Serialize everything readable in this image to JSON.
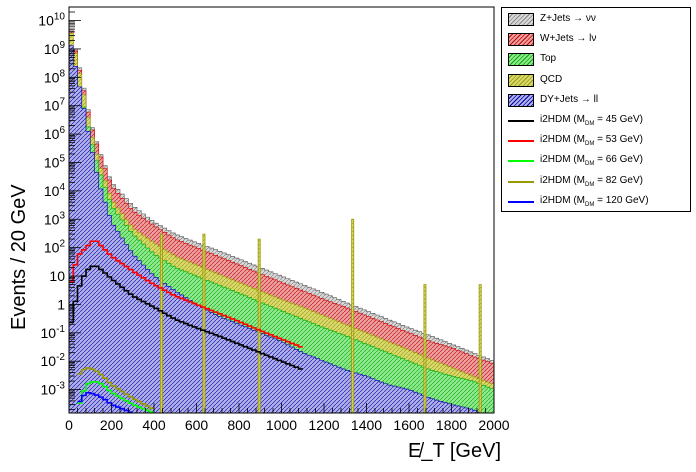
{
  "chart_data": {
    "type": "bar",
    "stacked": true,
    "log_y": true,
    "xlabel": "E̸_T [GeV]",
    "ylabel": "Events / 20 GeV",
    "xlim": [
      0,
      2000
    ],
    "ylim": [
      0.00015,
      30000000000
    ],
    "x_ticks": [
      "0",
      "200",
      "400",
      "600",
      "800",
      "1000",
      "1200",
      "1400",
      "1600",
      "1800",
      "2000"
    ],
    "y_ticks": [
      {
        "value": 0.001,
        "base": "10",
        "exp": "-3"
      },
      {
        "value": 0.01,
        "base": "10",
        "exp": "-2"
      },
      {
        "value": 0.1,
        "base": "10",
        "exp": "-1"
      },
      {
        "value": 1,
        "base": "1",
        "exp": ""
      },
      {
        "value": 10,
        "base": "10",
        "exp": ""
      },
      {
        "value": 100,
        "base": "10",
        "exp": "2"
      },
      {
        "value": 1000,
        "base": "10",
        "exp": "3"
      },
      {
        "value": 10000,
        "base": "10",
        "exp": "4"
      },
      {
        "value": 100000,
        "base": "10",
        "exp": "5"
      },
      {
        "value": 1000000,
        "base": "10",
        "exp": "6"
      },
      {
        "value": 10000000,
        "base": "10",
        "exp": "7"
      },
      {
        "value": 100000000,
        "base": "10",
        "exp": "8"
      },
      {
        "value": 1000000000,
        "base": "10",
        "exp": "9"
      },
      {
        "value": 10000000000,
        "base": "10",
        "exp": "10"
      }
    ],
    "bin_width": 20,
    "legend_position": "top-right, outside plot",
    "stack_totals": {
      "note_for_readers_only": "",
      "Z+Jets": [
        [
          0,
          10000000000
        ],
        [
          60,
          100000000
        ],
        [
          100,
          3000000
        ],
        [
          140,
          300000
        ],
        [
          200,
          20000
        ],
        [
          300,
          3000
        ],
        [
          400,
          800
        ],
        [
          500,
          300
        ],
        [
          600,
          150
        ],
        [
          700,
          80
        ],
        [
          800,
          40
        ],
        [
          900,
          20
        ],
        [
          1000,
          10
        ],
        [
          1100,
          5
        ],
        [
          1200,
          2.5
        ],
        [
          1300,
          1.2
        ],
        [
          1400,
          0.6
        ],
        [
          1500,
          0.3
        ],
        [
          1600,
          0.15
        ],
        [
          1700,
          0.08
        ],
        [
          1800,
          0.04
        ],
        [
          1900,
          0.02
        ],
        [
          2000,
          0.01
        ]
      ],
      "W+Jets": [
        [
          0,
          9000000000
        ],
        [
          60,
          80000000
        ],
        [
          100,
          2500000
        ],
        [
          140,
          250000
        ],
        [
          200,
          15000
        ],
        [
          300,
          2000
        ],
        [
          400,
          600
        ],
        [
          500,
          200
        ],
        [
          600,
          100
        ],
        [
          700,
          50
        ],
        [
          800,
          25
        ],
        [
          900,
          12
        ],
        [
          1000,
          6
        ],
        [
          1100,
          3
        ],
        [
          1200,
          1.5
        ],
        [
          1300,
          0.8
        ],
        [
          1400,
          0.4
        ],
        [
          1500,
          0.2
        ],
        [
          1600,
          0.1
        ],
        [
          1700,
          0.05
        ],
        [
          1800,
          0.03
        ],
        [
          1900,
          0.015
        ],
        [
          2000,
          0.008
        ]
      ],
      "Top": [
        [
          0,
          1000000000
        ],
        [
          60,
          20000000
        ],
        [
          100,
          800000
        ],
        [
          140,
          60000
        ],
        [
          200,
          3000
        ],
        [
          300,
          300
        ],
        [
          400,
          60
        ],
        [
          500,
          20
        ],
        [
          600,
          10
        ],
        [
          700,
          5
        ],
        [
          800,
          2.5
        ],
        [
          900,
          1.2
        ],
        [
          1000,
          0.6
        ],
        [
          1100,
          0.3
        ],
        [
          1200,
          0.15
        ],
        [
          1300,
          0.08
        ],
        [
          1400,
          0.04
        ],
        [
          1500,
          0.02
        ],
        [
          1600,
          0.01
        ],
        [
          1700,
          0.005
        ],
        [
          1800,
          0.003
        ],
        [
          1900,
          0.002
        ],
        [
          2000,
          0.001
        ]
      ],
      "QCD": [
        [
          0,
          8000000000
        ],
        [
          60,
          60000000
        ],
        [
          100,
          1500000
        ],
        [
          140,
          100000
        ],
        [
          200,
          5000
        ],
        [
          300,
          500
        ],
        [
          400,
          150
        ],
        [
          500,
          50
        ],
        [
          600,
          25
        ],
        [
          700,
          12
        ],
        [
          800,
          6
        ],
        [
          900,
          3
        ],
        [
          1000,
          1.5
        ],
        [
          1100,
          0.8
        ],
        [
          1200,
          0.4
        ],
        [
          1300,
          0.2
        ],
        [
          1400,
          0.1
        ],
        [
          1500,
          0.05
        ],
        [
          1600,
          0.025
        ],
        [
          1700,
          0.012
        ],
        [
          1800,
          0.006
        ],
        [
          1900,
          0.003
        ],
        [
          2000,
          0.0015
        ]
      ],
      "DY+Jets": [
        [
          0,
          3000000000
        ],
        [
          60,
          20000000
        ],
        [
          100,
          500000
        ],
        [
          140,
          20000
        ],
        [
          200,
          800
        ],
        [
          300,
          60
        ],
        [
          400,
          10
        ],
        [
          500,
          3
        ],
        [
          600,
          1
        ],
        [
          700,
          0.4
        ],
        [
          800,
          0.2
        ],
        [
          900,
          0.1
        ],
        [
          1000,
          0.05
        ],
        [
          1100,
          0.02
        ],
        [
          1200,
          0.01
        ],
        [
          1300,
          0.005
        ],
        [
          1400,
          0.003
        ],
        [
          1500,
          0.0015
        ],
        [
          1600,
          0.001
        ],
        [
          1700,
          0.0005
        ],
        [
          1800,
          0.0003
        ],
        [
          1900,
          0.0002
        ],
        [
          2000,
          0.0001
        ]
      ]
    },
    "qcd_spikes": [
      [
        500,
        300
      ],
      [
        700,
        300
      ],
      [
        960,
        200
      ],
      [
        1400,
        1000
      ],
      [
        1740,
        5
      ],
      [
        2000,
        5
      ]
    ],
    "signal_lines": [
      {
        "name": "i2HDM (M_DM = 45 GeV)",
        "color": "#000000",
        "points": [
          [
            0,
            0.1
          ],
          [
            40,
            3
          ],
          [
            80,
            15
          ],
          [
            120,
            25
          ],
          [
            160,
            15
          ],
          [
            200,
            8
          ],
          [
            300,
            2
          ],
          [
            400,
            0.8
          ],
          [
            500,
            0.3
          ],
          [
            600,
            0.15
          ],
          [
            700,
            0.08
          ],
          [
            800,
            0.04
          ],
          [
            900,
            0.02
          ],
          [
            1000,
            0.01
          ],
          [
            1100,
            0.005
          ]
        ]
      },
      {
        "name": "i2HDM (M_DM = 53 GeV)",
        "color": "#ff0000",
        "points": [
          [
            0,
            3
          ],
          [
            40,
            50
          ],
          [
            80,
            100
          ],
          [
            120,
            200
          ],
          [
            160,
            100
          ],
          [
            200,
            50
          ],
          [
            300,
            15
          ],
          [
            400,
            5
          ],
          [
            500,
            2
          ],
          [
            600,
            1
          ],
          [
            700,
            0.5
          ],
          [
            800,
            0.25
          ],
          [
            900,
            0.12
          ],
          [
            1000,
            0.06
          ],
          [
            1100,
            0.03
          ]
        ]
      },
      {
        "name": "i2HDM (M_DM = 66 GeV)",
        "color": "#00ff00",
        "points": [
          [
            40,
            0.0002
          ],
          [
            80,
            0.0015
          ],
          [
            120,
            0.002
          ],
          [
            160,
            0.0015
          ],
          [
            200,
            0.0008
          ],
          [
            300,
            0.0003
          ],
          [
            400,
            0.00015
          ]
        ]
      },
      {
        "name": "i2HDM (M_DM = 82 GeV)",
        "color": "#999900",
        "points": [
          [
            40,
            0.003
          ],
          [
            80,
            0.006
          ],
          [
            120,
            0.005
          ],
          [
            160,
            0.003
          ],
          [
            200,
            0.0015
          ],
          [
            300,
            0.0005
          ],
          [
            400,
            0.0002
          ]
        ]
      },
      {
        "name": "i2HDM (M_DM = 120 GeV)",
        "color": "#0000ff",
        "points": [
          [
            40,
            0.0003
          ],
          [
            80,
            0.0008
          ],
          [
            120,
            0.0007
          ],
          [
            160,
            0.0005
          ],
          [
            200,
            0.0003
          ],
          [
            300,
            0.00015
          ]
        ]
      }
    ]
  },
  "legend": {
    "items": [
      {
        "kind": "fill",
        "label": "Z+Jets → νν",
        "fill": "#d8d8d8",
        "hatch": "#888888"
      },
      {
        "kind": "fill",
        "label": "W+Jets → lν",
        "fill": "#e8a0a0",
        "hatch": "#cc0000"
      },
      {
        "kind": "fill",
        "label": "Top",
        "fill": "#90e890",
        "hatch": "#00aa00"
      },
      {
        "kind": "fill",
        "label": "QCD",
        "fill": "#d8d870",
        "hatch": "#999900"
      },
      {
        "kind": "fill",
        "label": "DY+Jets → ll",
        "fill": "#b0b0e8",
        "hatch": "#0000aa"
      },
      {
        "kind": "line",
        "label_pre": "i2HDM (M",
        "label_sub": "DM",
        "label_post": " =  45 GeV)",
        "color": "#000000"
      },
      {
        "kind": "line",
        "label_pre": "i2HDM (M",
        "label_sub": "DM",
        "label_post": " =  53 GeV)",
        "color": "#ff0000"
      },
      {
        "kind": "line",
        "label_pre": "i2HDM (M",
        "label_sub": "DM",
        "label_post": " =  66 GeV)",
        "color": "#00ff00"
      },
      {
        "kind": "line",
        "label_pre": "i2HDM (M",
        "label_sub": "DM",
        "label_post": " =  82 GeV)",
        "color": "#999900"
      },
      {
        "kind": "line",
        "label_pre": "i2HDM (M",
        "label_sub": "DM",
        "label_post": " = 120 GeV)",
        "color": "#0000ff"
      }
    ]
  }
}
